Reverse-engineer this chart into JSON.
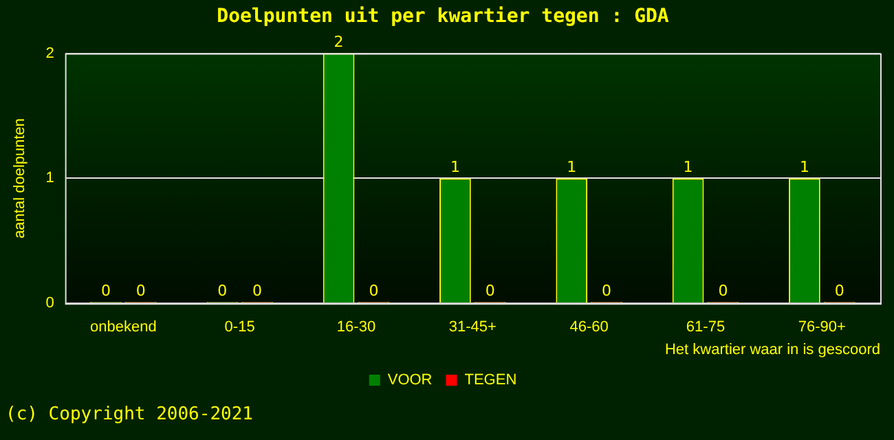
{
  "chart_data": {
    "type": "bar",
    "title": "Doelpunten uit per kwartier tegen : GDA",
    "xlabel": "Het kwartier waar in is gescoord",
    "ylabel": "aantal doelpunten",
    "categories": [
      "onbekend",
      "0-15",
      "16-30",
      "31-45+",
      "46-60",
      "61-75",
      "76-90+"
    ],
    "series": [
      {
        "name": "VOOR",
        "color": "#008000",
        "values": [
          0,
          0,
          2,
          1,
          1,
          1,
          1
        ]
      },
      {
        "name": "TEGEN",
        "color": "#ff0000",
        "values": [
          0,
          0,
          0,
          0,
          0,
          0,
          0
        ]
      }
    ],
    "ylim": [
      0,
      2
    ],
    "yticks": [
      0,
      1,
      2
    ],
    "grid": "y",
    "legend": "bottom",
    "data_labels": true,
    "annotations": [
      "(c) Copyright 2006-2021"
    ]
  }
}
